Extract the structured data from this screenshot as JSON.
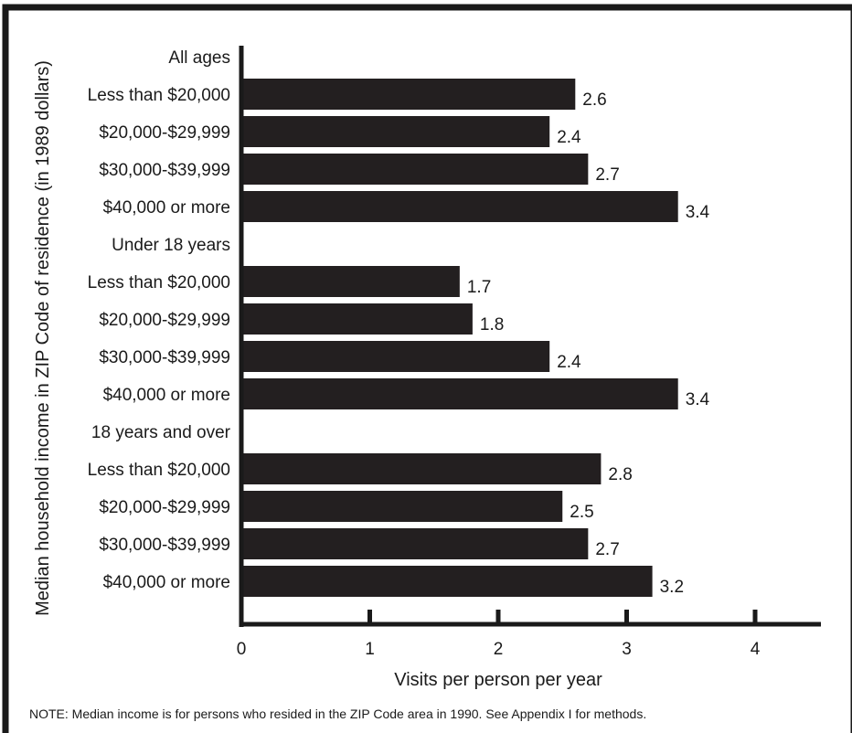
{
  "chart_data": {
    "type": "bar",
    "orientation": "horizontal",
    "xlabel": "Visits per person per year",
    "ylabel": "Median household income in ZIP Code of residence (in 1989 dollars)",
    "xlim": [
      0,
      4.5
    ],
    "xticks": [
      "0",
      "1",
      "2",
      "3",
      "4"
    ],
    "grid": false,
    "groups": [
      {
        "name": "All ages",
        "categories": [
          "Less than $20,000",
          "$20,000-$29,999",
          "$30,000-$39,999",
          "$40,000 or more"
        ],
        "values": [
          2.6,
          2.4,
          2.7,
          3.4
        ],
        "value_labels": [
          "2.6",
          "2.4",
          "2.7",
          "3.4"
        ]
      },
      {
        "name": "Under 18 years",
        "categories": [
          "Less than $20,000",
          "$20,000-$29,999",
          "$30,000-$39,999",
          "$40,000 or more"
        ],
        "values": [
          1.7,
          1.8,
          2.4,
          3.4
        ],
        "value_labels": [
          "1.7",
          "1.8",
          "2.4",
          "3.4"
        ]
      },
      {
        "name": "18 years and over",
        "categories": [
          "Less than $20,000",
          "$20,000-$29,999",
          "$30,000-$39,999",
          "$40,000 or more"
        ],
        "values": [
          2.8,
          2.5,
          2.7,
          3.2
        ],
        "value_labels": [
          "2.8",
          "2.5",
          "2.7",
          "3.2"
        ]
      }
    ],
    "bar_color": "#231f20"
  },
  "note": "NOTE: Median income is for persons who resided in the ZIP Code area in 1990.  See Appendix I for methods."
}
